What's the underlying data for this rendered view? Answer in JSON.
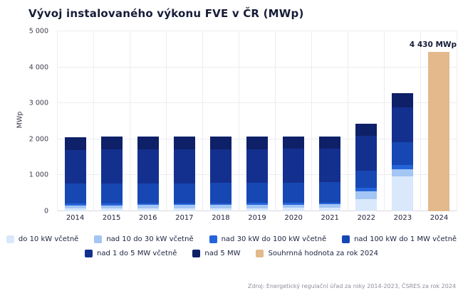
{
  "page": {
    "title": "Vývoj instalovaného výkonu FVE v ČR (MWp)",
    "source": "Zdroj: Energetický regulační úřad za roky 2014-2023, ČSRES za rok 2024"
  },
  "chart_data": {
    "type": "bar",
    "stacked": true,
    "title": "Vývoj instalovaného výkonu FVE v ČR (MWp)",
    "xlabel": "",
    "ylabel": "MWp",
    "ylim": [
      0,
      5000
    ],
    "yticks": [
      0,
      1000,
      2000,
      3000,
      4000,
      5000
    ],
    "ytick_labels": [
      "0",
      "1 000",
      "2 000",
      "3 000",
      "4 000",
      "5 000"
    ],
    "grid": "horizontal gridlines at each 1000 plus vertical column separators",
    "legend_position": "bottom",
    "categories": [
      "2014",
      "2015",
      "2016",
      "2017",
      "2018",
      "2019",
      "2020",
      "2021",
      "2022",
      "2023",
      "2024"
    ],
    "series": [
      {
        "name": "do 10 kW včetně",
        "color": "#d9e8fa",
        "values": [
          75,
          77,
          78,
          80,
          82,
          85,
          90,
          98,
          340,
          965,
          0
        ]
      },
      {
        "name": "nad 10 do 30 kW včetně",
        "color": "#a4c6f4",
        "values": [
          90,
          91,
          91,
          92,
          93,
          94,
          95,
          97,
          215,
          200,
          0
        ]
      },
      {
        "name": "nad 30 kW do 100 kW včetně",
        "color": "#2563d9",
        "values": [
          45,
          46,
          46,
          47,
          48,
          49,
          50,
          52,
          90,
          130,
          0
        ]
      },
      {
        "name": "nad 100 kW do 1 MW včetně",
        "color": "#1747b3",
        "values": [
          560,
          561,
          560,
          560,
          560,
          560,
          560,
          560,
          475,
          615,
          0
        ]
      },
      {
        "name": "nad 1 do 5 MW včetně",
        "color": "#14308f",
        "values": [
          940,
          941,
          940,
          940,
          940,
          940,
          938,
          936,
          975,
          975,
          0
        ]
      },
      {
        "name": "nad 5 MW",
        "color": "#0e2067",
        "values": [
          355,
          356,
          355,
          353,
          352,
          350,
          347,
          342,
          335,
          395,
          0
        ]
      }
    ],
    "totals": [
      2065,
      2072,
      2070,
      2072,
      2075,
      2078,
      2080,
      2085,
      2430,
      3280,
      4430
    ],
    "overlay_total": {
      "name": "Souhrnná hodnota za rok 2024",
      "color": "#e4b98c",
      "category": "2024",
      "value": 4430,
      "label": "4 430 MWp"
    },
    "legend_rows": [
      [
        0,
        1,
        2,
        3
      ],
      [
        4,
        5,
        6
      ]
    ]
  }
}
